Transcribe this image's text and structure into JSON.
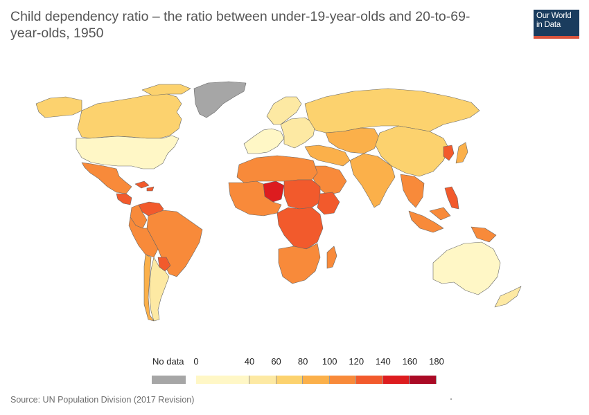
{
  "title": "Child dependency ratio – the ratio between under-19-year-olds and 20-to-69-year-olds, 1950",
  "logo": {
    "line1": "Our World",
    "line2": "in Data",
    "bg": "#1a3c5e",
    "accent": "#d9533c"
  },
  "source": "Source: UN Population Division (2017 Revision)",
  "legend": {
    "nodata_label": "No data",
    "nodata_color": "#a6a6a6",
    "ticks": [
      "0",
      "40",
      "60",
      "80",
      "100",
      "120",
      "140",
      "160",
      "180"
    ],
    "bins": [
      {
        "from": 0,
        "to": 40,
        "color": "#fff7c6"
      },
      {
        "from": 40,
        "to": 60,
        "color": "#fde9a3"
      },
      {
        "from": 60,
        "to": 80,
        "color": "#fcd26e"
      },
      {
        "from": 80,
        "to": 100,
        "color": "#fbb04a"
      },
      {
        "from": 100,
        "to": 120,
        "color": "#f88a3a"
      },
      {
        "from": 120,
        "to": 140,
        "color": "#f25a2c"
      },
      {
        "from": 140,
        "to": 160,
        "color": "#dd1c1f"
      },
      {
        "from": 160,
        "to": 180,
        "color": "#aa0a25"
      }
    ]
  },
  "regions": [
    {
      "name": "Greenland",
      "color": "#a6a6a6"
    },
    {
      "name": "Canada",
      "color": "#fcd26e"
    },
    {
      "name": "Alaska",
      "color": "#fcd26e"
    },
    {
      "name": "United States",
      "color": "#fff7c6"
    },
    {
      "name": "Mexico",
      "color": "#f88a3a"
    },
    {
      "name": "Central America",
      "color": "#f25a2c"
    },
    {
      "name": "Caribbean",
      "color": "#f25a2c"
    },
    {
      "name": "Venezuela",
      "color": "#f25a2c"
    },
    {
      "name": "Colombia",
      "color": "#f88a3a"
    },
    {
      "name": "Brazil",
      "color": "#f88a3a"
    },
    {
      "name": "Peru-Bolivia",
      "color": "#f88a3a"
    },
    {
      "name": "Paraguay",
      "color": "#f25a2c"
    },
    {
      "name": "Argentina",
      "color": "#fde9a3"
    },
    {
      "name": "Chile",
      "color": "#fbb04a"
    },
    {
      "name": "Europe West",
      "color": "#fff7c6"
    },
    {
      "name": "Europe East",
      "color": "#fde9a3"
    },
    {
      "name": "Scandinavia",
      "color": "#fde9a3"
    },
    {
      "name": "Russia",
      "color": "#fcd26e"
    },
    {
      "name": "Central Asia",
      "color": "#fbb04a"
    },
    {
      "name": "China",
      "color": "#fcd26e"
    },
    {
      "name": "Korea",
      "color": "#f25a2c"
    },
    {
      "name": "Japan",
      "color": "#fbb04a"
    },
    {
      "name": "Middle East",
      "color": "#fbb04a"
    },
    {
      "name": "Arabia",
      "color": "#f88a3a"
    },
    {
      "name": "India",
      "color": "#fbb04a"
    },
    {
      "name": "Southeast Asia",
      "color": "#f88a3a"
    },
    {
      "name": "Philippines",
      "color": "#f25a2c"
    },
    {
      "name": "Indonesia",
      "color": "#f88a3a"
    },
    {
      "name": "Papua New Guinea",
      "color": "#f88a3a"
    },
    {
      "name": "Australia",
      "color": "#fff7c6"
    },
    {
      "name": "New Zealand",
      "color": "#fde9a3"
    },
    {
      "name": "North Africa",
      "color": "#f88a3a"
    },
    {
      "name": "Niger",
      "color": "#dd1c1f"
    },
    {
      "name": "West Africa",
      "color": "#f88a3a"
    },
    {
      "name": "Sudan-Chad",
      "color": "#f25a2c"
    },
    {
      "name": "Ethiopia",
      "color": "#f25a2c"
    },
    {
      "name": "Central Africa",
      "color": "#f25a2c"
    },
    {
      "name": "Southern Africa",
      "color": "#f88a3a"
    },
    {
      "name": "Madagascar",
      "color": "#f88a3a"
    }
  ]
}
